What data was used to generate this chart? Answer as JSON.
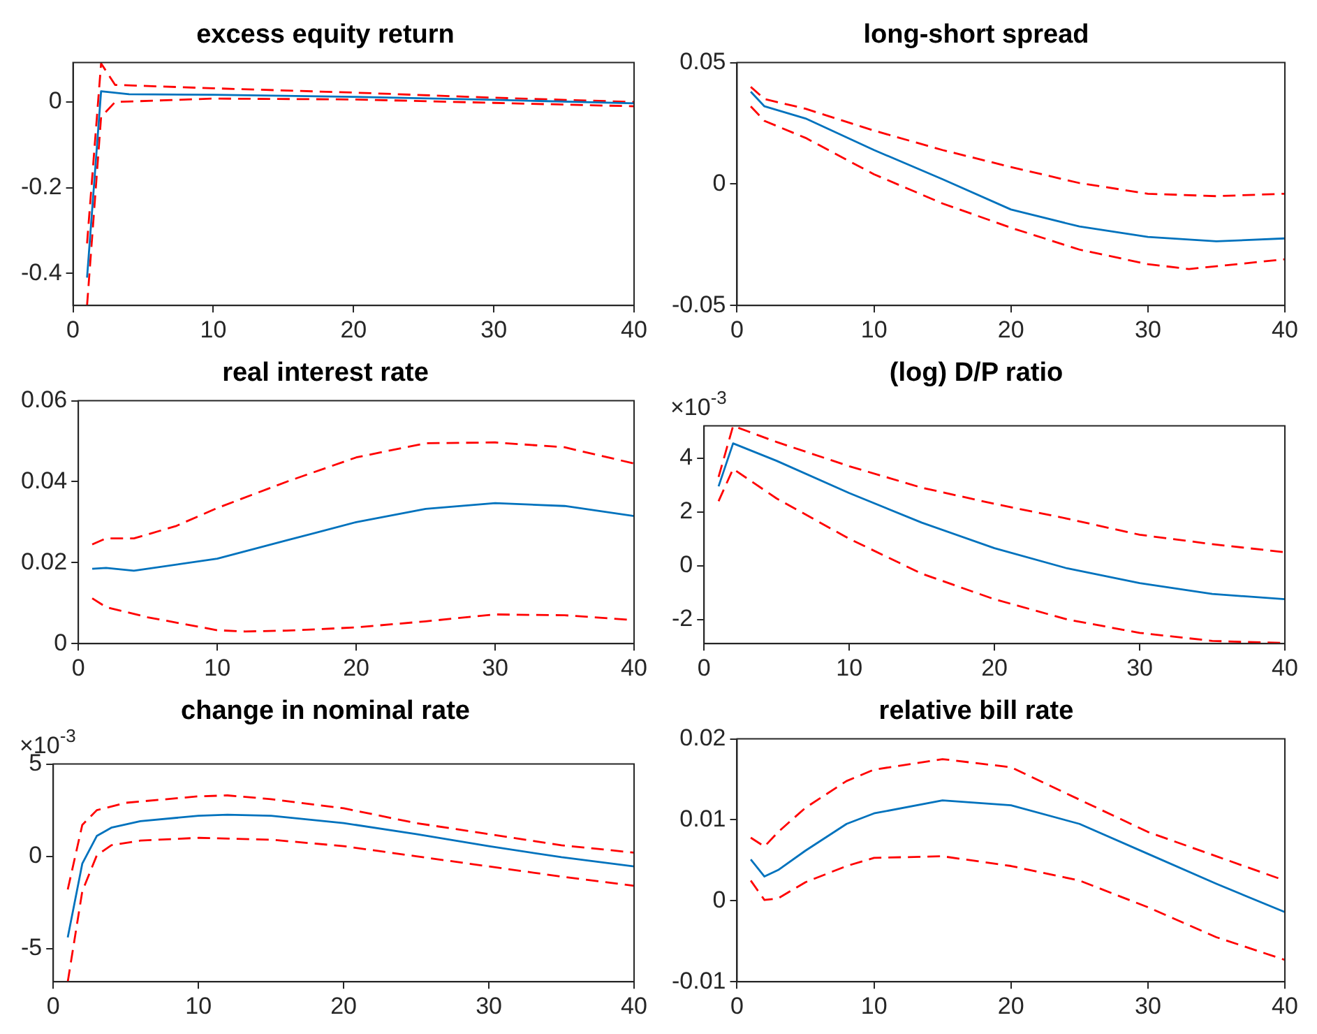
{
  "chart_data": [
    {
      "type": "line",
      "title": "excess equity return",
      "xlim": [
        0,
        40
      ],
      "xticks": [
        0,
        10,
        20,
        30,
        40
      ],
      "ylim": [
        -0.475,
        0.092
      ],
      "yticks": [
        -0.4,
        -0.2,
        0
      ],
      "grid": false,
      "legend": false,
      "marker": "none",
      "series": [
        {
          "color": "#0072bd",
          "line_style": "solid",
          "x": [
            1,
            2,
            4,
            10,
            20,
            30,
            40
          ],
          "values": [
            -0.41,
            0.025,
            0.018,
            0.017,
            0.012,
            0.005,
            -0.003
          ]
        },
        {
          "color": "#ff0000",
          "line_style": "dashed",
          "x": [
            1,
            2,
            3,
            10,
            20,
            30,
            40
          ],
          "values": [
            -0.33,
            0.09,
            0.04,
            0.032,
            0.022,
            0.01,
            0.0
          ]
        },
        {
          "color": "#ff0000",
          "line_style": "dashed",
          "x": [
            1,
            2,
            3,
            10,
            20,
            30,
            40
          ],
          "values": [
            -0.475,
            -0.035,
            0.0,
            0.008,
            0.006,
            -0.002,
            -0.01
          ]
        }
      ]
    },
    {
      "type": "line",
      "title": "long-short spread",
      "xlim": [
        0,
        40
      ],
      "xticks": [
        0,
        10,
        20,
        30,
        40
      ],
      "ylim": [
        -0.05,
        0.05
      ],
      "yticks": [
        -0.05,
        0,
        0.05
      ],
      "grid": false,
      "legend": false,
      "marker": "none",
      "series": [
        {
          "color": "#0072bd",
          "line_style": "solid",
          "x": [
            1,
            2,
            5,
            10,
            15,
            20,
            25,
            30,
            35,
            40
          ],
          "values": [
            0.038,
            0.032,
            0.027,
            0.014,
            0.002,
            -0.0105,
            -0.0175,
            -0.0218,
            -0.0236,
            -0.0224
          ]
        },
        {
          "color": "#ff0000",
          "line_style": "dashed",
          "x": [
            1,
            2,
            5,
            10,
            15,
            20,
            25,
            30,
            35,
            40
          ],
          "values": [
            0.04,
            0.035,
            0.031,
            0.022,
            0.014,
            0.007,
            0.0004,
            -0.004,
            -0.005,
            -0.004
          ]
        },
        {
          "color": "#ff0000",
          "line_style": "dashed",
          "x": [
            1,
            2,
            5,
            10,
            15,
            20,
            25,
            30,
            33,
            40
          ],
          "values": [
            0.032,
            0.026,
            0.019,
            0.004,
            -0.008,
            -0.018,
            -0.027,
            -0.033,
            -0.035,
            -0.031
          ]
        }
      ]
    },
    {
      "type": "line",
      "title": "real interest rate",
      "xlim": [
        0,
        40
      ],
      "xticks": [
        0,
        10,
        20,
        30,
        40
      ],
      "ylim": [
        0,
        0.06
      ],
      "yticks": [
        0,
        0.02,
        0.04,
        0.06
      ],
      "grid": false,
      "legend": false,
      "marker": "none",
      "series": [
        {
          "color": "#0072bd",
          "line_style": "solid",
          "x": [
            1,
            2,
            4,
            10,
            15,
            20,
            25,
            30,
            35,
            40
          ],
          "values": [
            0.0185,
            0.0187,
            0.018,
            0.021,
            0.0255,
            0.03,
            0.0333,
            0.0347,
            0.034,
            0.0315
          ]
        },
        {
          "color": "#ff0000",
          "line_style": "dashed",
          "x": [
            1,
            2,
            4,
            7,
            10,
            15,
            20,
            25,
            30,
            35,
            40
          ],
          "values": [
            0.0245,
            0.026,
            0.026,
            0.029,
            0.0335,
            0.04,
            0.046,
            0.0495,
            0.0497,
            0.0485,
            0.0445
          ]
        },
        {
          "color": "#ff0000",
          "line_style": "dashed",
          "x": [
            1,
            2,
            5,
            10,
            12,
            15,
            20,
            25,
            30,
            35,
            40
          ],
          "values": [
            0.0112,
            0.009,
            0.0065,
            0.0033,
            0.003,
            0.0032,
            0.004,
            0.0055,
            0.0072,
            0.007,
            0.0058
          ]
        }
      ]
    },
    {
      "type": "line",
      "title": "(log) D/P ratio",
      "annotations": [
        "×10$^{-3}$"
      ],
      "xlim": [
        0,
        40
      ],
      "xticks": [
        0,
        10,
        20,
        30,
        40
      ],
      "ylim": [
        -2.9,
        5.2
      ],
      "yticks": [
        -2,
        0,
        2,
        4
      ],
      "grid": false,
      "legend": false,
      "marker": "none",
      "series": [
        {
          "color": "#0072bd",
          "line_style": "solid",
          "x": [
            1,
            2,
            5,
            10,
            15,
            20,
            25,
            30,
            35,
            40
          ],
          "values": [
            2.95,
            4.55,
            3.9,
            2.7,
            1.6,
            0.65,
            -0.1,
            -0.65,
            -1.05,
            -1.25
          ]
        },
        {
          "color": "#ff0000",
          "line_style": "dashed",
          "x": [
            1,
            2,
            3,
            5,
            10,
            15,
            20,
            25,
            30,
            35,
            40
          ],
          "values": [
            3.3,
            5.2,
            5.0,
            4.6,
            3.7,
            2.9,
            2.3,
            1.75,
            1.15,
            0.8,
            0.5
          ]
        },
        {
          "color": "#ff0000",
          "line_style": "dashed",
          "x": [
            1,
            2,
            5,
            10,
            15,
            20,
            25,
            30,
            35,
            40
          ],
          "values": [
            2.4,
            3.6,
            2.5,
            1.0,
            -0.3,
            -1.25,
            -2.0,
            -2.5,
            -2.8,
            -2.88
          ]
        }
      ]
    },
    {
      "type": "line",
      "title": "change in nominal rate",
      "annotations": [
        "×10$^{-3}$"
      ],
      "xlim": [
        0,
        40
      ],
      "xticks": [
        0,
        10,
        20,
        30,
        40
      ],
      "ylim": [
        -6.8,
        5
      ],
      "yticks": [
        -5,
        0,
        5
      ],
      "grid": false,
      "legend": false,
      "marker": "none",
      "series": [
        {
          "color": "#0072bd",
          "line_style": "solid",
          "x": [
            1,
            2,
            3,
            4,
            6,
            10,
            12,
            15,
            20,
            25,
            30,
            35,
            40
          ],
          "values": [
            -4.4,
            -0.4,
            1.1,
            1.55,
            1.9,
            2.2,
            2.25,
            2.2,
            1.8,
            1.2,
            0.55,
            -0.05,
            -0.55
          ]
        },
        {
          "color": "#ff0000",
          "line_style": "dashed",
          "x": [
            1,
            2,
            3,
            5,
            10,
            12,
            15,
            20,
            25,
            30,
            35,
            40
          ],
          "values": [
            -1.8,
            1.7,
            2.5,
            2.9,
            3.25,
            3.3,
            3.1,
            2.6,
            1.8,
            1.2,
            0.6,
            0.2
          ]
        },
        {
          "color": "#ff0000",
          "line_style": "dashed",
          "x": [
            1,
            2,
            3,
            4,
            6,
            10,
            15,
            20,
            25,
            30,
            35,
            40
          ],
          "values": [
            -6.8,
            -1.9,
            0.05,
            0.6,
            0.85,
            1.0,
            0.9,
            0.55,
            0.0,
            -0.55,
            -1.1,
            -1.6
          ]
        }
      ]
    },
    {
      "type": "line",
      "title": "relative bill rate",
      "xlim": [
        0,
        40
      ],
      "xticks": [
        0,
        10,
        20,
        30,
        40
      ],
      "ylim": [
        -0.01,
        0.02
      ],
      "yticks": [
        -0.01,
        0,
        0.01,
        0.02
      ],
      "grid": false,
      "legend": false,
      "marker": "none",
      "series": [
        {
          "color": "#0072bd",
          "line_style": "solid",
          "x": [
            1,
            2,
            3,
            5,
            8,
            10,
            15,
            20,
            25,
            30,
            35,
            40
          ],
          "values": [
            0.0051,
            0.003,
            0.0038,
            0.0062,
            0.0095,
            0.0108,
            0.0124,
            0.0118,
            0.0095,
            0.0058,
            0.0021,
            -0.0014
          ]
        },
        {
          "color": "#ff0000",
          "line_style": "dashed",
          "x": [
            1,
            2,
            3,
            5,
            8,
            10,
            15,
            20,
            25,
            30,
            35,
            40
          ],
          "values": [
            0.0078,
            0.0067,
            0.0085,
            0.0115,
            0.0148,
            0.0162,
            0.0175,
            0.0165,
            0.0125,
            0.0085,
            0.0055,
            0.0025
          ]
        },
        {
          "color": "#ff0000",
          "line_style": "dashed",
          "x": [
            1,
            2,
            3,
            5,
            8,
            10,
            15,
            20,
            25,
            30,
            35,
            40
          ],
          "values": [
            0.0025,
            0.0001,
            0.0003,
            0.0023,
            0.0043,
            0.0053,
            0.0055,
            0.0043,
            0.0025,
            -0.0008,
            -0.0045,
            -0.0073
          ]
        }
      ]
    }
  ]
}
